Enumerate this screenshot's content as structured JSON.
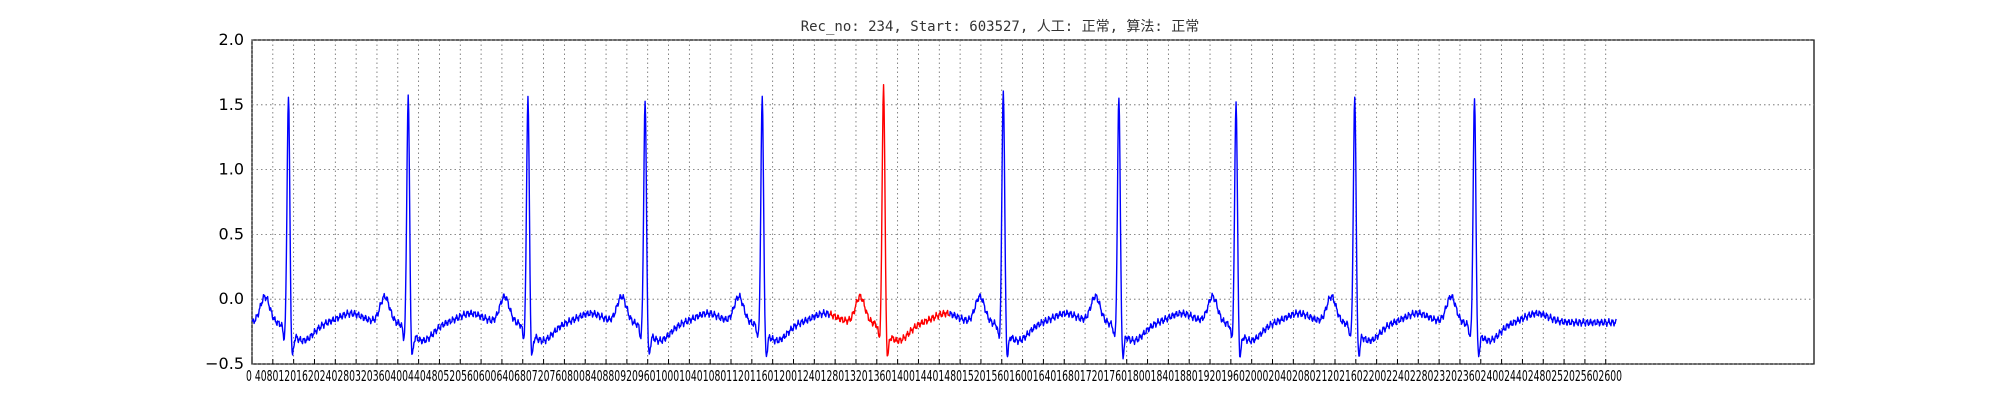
{
  "chart_data": {
    "type": "line",
    "title": "Rec_no: 234, Start: 603527, 人工: 正常, 算法: 正常",
    "xlabel": "",
    "ylabel": "",
    "xlim": [
      0,
      3000
    ],
    "ylim": [
      -0.5,
      2.0
    ],
    "grid": true,
    "y_ticks": [
      -0.5,
      0.0,
      0.5,
      1.0,
      1.5,
      2.0
    ],
    "y_tick_labels": [
      "−0.5",
      "0.0",
      "0.5",
      "1.0",
      "1.5",
      "2.0"
    ],
    "x_tick_labels_raw": "0 4080120162024028032036040044048052056060064068072076080084088092096010001040108011201160120012401280132013601400144014801520156016001640168017201760180018401880192019602000204020802120216022002240228023202360240024402480252025602600",
    "x_ticks": [
      0,
      40,
      80,
      120,
      160,
      200,
      240,
      280,
      320,
      360,
      400,
      440,
      480,
      520,
      560,
      600,
      640,
      680,
      720,
      760,
      800,
      840,
      880,
      920,
      960,
      1000,
      1040,
      1080,
      1120,
      1160,
      1200,
      1240,
      1280,
      1320,
      1360,
      1400,
      1440,
      1480,
      1520,
      1560,
      1600,
      1640,
      1680,
      1720,
      1760,
      1800,
      1840,
      1880,
      1920,
      1960,
      2000,
      2040,
      2080,
      2120,
      2160,
      2200,
      2240,
      2280,
      2320,
      2360,
      2400,
      2440,
      2480,
      2520,
      2560,
      2600
    ],
    "signal": {
      "x_end": 2620,
      "baseline": -0.18,
      "r_peaks": [
        {
          "x": 70,
          "peak": 1.62
        },
        {
          "x": 300,
          "peak": 1.63
        },
        {
          "x": 530,
          "peak": 1.62
        },
        {
          "x": 755,
          "peak": 1.58
        },
        {
          "x": 980,
          "peak": 1.61
        },
        {
          "x": 1213,
          "peak": 1.72
        },
        {
          "x": 1443,
          "peak": 1.68
        },
        {
          "x": 1665,
          "peak": 1.62
        },
        {
          "x": 1890,
          "peak": 1.59
        },
        {
          "x": 2118,
          "peak": 1.61
        },
        {
          "x": 2348,
          "peak": 1.6
        }
      ]
    },
    "series": [
      {
        "color": "#0000ff"
      },
      {
        "color": "#ff0000",
        "x_range": [
          1110,
          1340
        ]
      }
    ]
  }
}
